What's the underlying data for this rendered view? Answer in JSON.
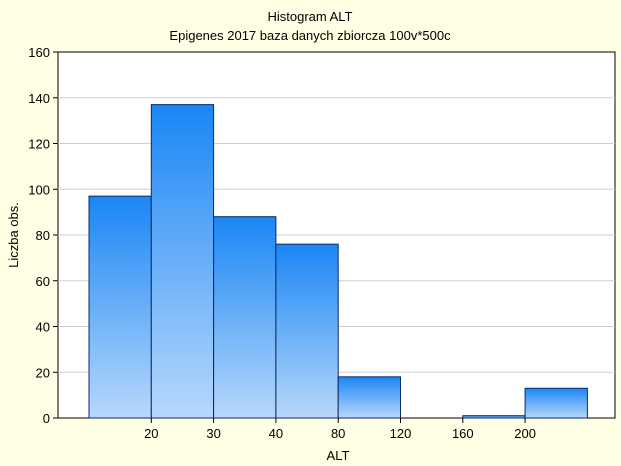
{
  "chart_data": {
    "type": "bar",
    "title": "Histogram   ALT",
    "subtitle": "Epigenes 2017 baza danych zbiorcza 100v*500c",
    "xlabel": "ALT",
    "ylabel": "Liczba obs.",
    "ylim": [
      0,
      160
    ],
    "yticks": [
      0,
      20,
      40,
      60,
      80,
      100,
      120,
      140,
      160
    ],
    "bins": 8,
    "x_tick_labels": [
      "20",
      "30",
      "40",
      "80",
      "120",
      "160",
      "200"
    ],
    "values": [
      97,
      137,
      88,
      76,
      18,
      0,
      1,
      13
    ],
    "grid": true,
    "legend": "none",
    "colors": {
      "background": "#ffffe6",
      "plot_background": "#ffffff",
      "bar_top": "#1a86f5",
      "bar_bottom": "#b7d8fb",
      "bar_stroke": "#0a2a66",
      "grid": "#cfcfcf"
    }
  }
}
